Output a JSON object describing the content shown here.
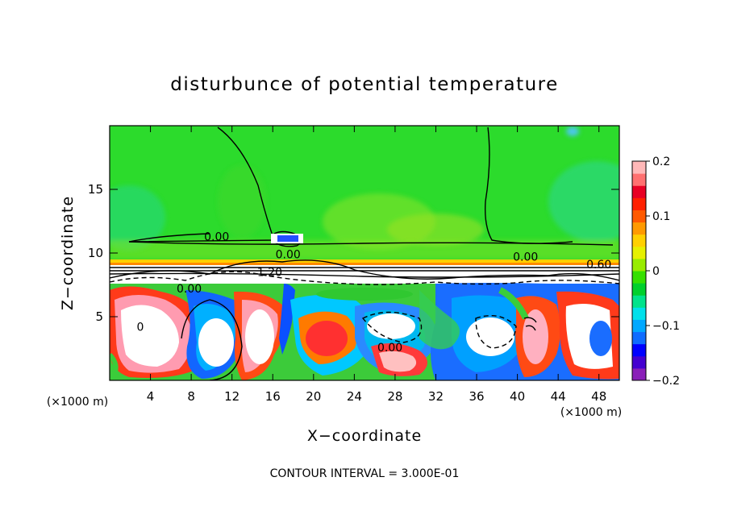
{
  "chart_data": {
    "type": "heatmap",
    "title": "disturbunce of potential temperature",
    "xlabel": "X−coordinate",
    "ylabel": "Z−coordinate",
    "x_unit": "(×1000 m)",
    "xlim": [
      0,
      50
    ],
    "ylim": [
      0,
      20
    ],
    "x_ticks": [
      4,
      8,
      12,
      16,
      20,
      24,
      28,
      32,
      36,
      40,
      44,
      48
    ],
    "y_ticks": [
      5,
      10,
      15
    ],
    "colorbar": {
      "range": [
        -0.2,
        0.2
      ],
      "ticks": [
        0.2,
        0.1,
        0,
        -0.1,
        -0.2
      ],
      "tick_labels": [
        "0.2",
        "0.1",
        "0",
        "−0.1",
        "−0.2"
      ],
      "colors": [
        "#8a1fb8",
        "#4400d0",
        "#0000ff",
        "#0f6cff",
        "#00a8ff",
        "#00e0ea",
        "#00e38b",
        "#00d02c",
        "#36e000",
        "#98ec00",
        "#e6f000",
        "#ffd000",
        "#ff9a00",
        "#ff5a00",
        "#ff2000",
        "#e80024",
        "#ff7070",
        "#ffb8b8"
      ]
    },
    "contour_labels": [
      {
        "x": 10.5,
        "z": 11.3,
        "text": "0.00"
      },
      {
        "x": 17.5,
        "z": 9.9,
        "text": "0.00"
      },
      {
        "x": 40.8,
        "z": 9.7,
        "text": "0.00"
      },
      {
        "x": 48.0,
        "z": 9.1,
        "text": "0.60"
      },
      {
        "x": 15.7,
        "z": 8.5,
        "text": "1.20"
      },
      {
        "x": 7.8,
        "z": 7.2,
        "text": "0.00"
      },
      {
        "x": 27.5,
        "z": 2.6,
        "text": "0.00"
      },
      {
        "x": 3.0,
        "z": 4.2,
        "text": "0"
      }
    ],
    "annotation": "CONTOUR INTERVAL = 3.000E-01"
  }
}
